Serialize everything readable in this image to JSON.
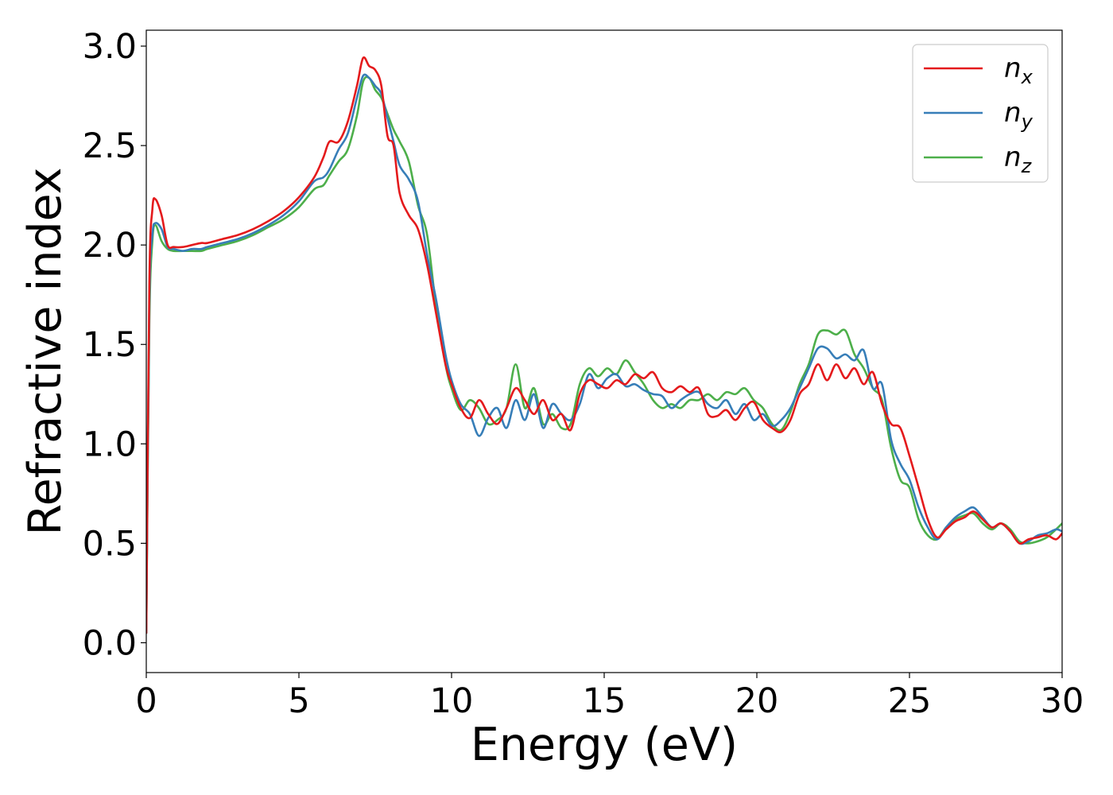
{
  "chart_data": {
    "type": "line",
    "title": "",
    "xlabel": "Energy (eV)",
    "ylabel": "Refractive index",
    "xlim": [
      0,
      30
    ],
    "ylim": [
      -0.15,
      3.08
    ],
    "xticks": [
      0,
      5,
      10,
      15,
      20,
      25,
      30
    ],
    "xtick_labels": [
      "0",
      "5",
      "10",
      "15",
      "20",
      "25",
      "30"
    ],
    "yticks": [
      0.0,
      0.5,
      1.0,
      1.5,
      2.0,
      2.5,
      3.0
    ],
    "ytick_labels": [
      "0.0",
      "0.5",
      "1.0",
      "1.5",
      "2.0",
      "2.5",
      "3.0"
    ],
    "grid": false,
    "legend_position": "top-right",
    "series": [
      {
        "name": "n",
        "subscript": "x",
        "color": "#e41a1c",
        "x": [
          0,
          0.1,
          0.2,
          0.3,
          0.5,
          0.7,
          0.9,
          1.2,
          1.5,
          1.8,
          2.0,
          2.5,
          3.0,
          3.5,
          4.0,
          4.5,
          5.0,
          5.5,
          5.8,
          6.0,
          6.3,
          6.6,
          6.9,
          7.1,
          7.3,
          7.5,
          7.7,
          7.9,
          8.1,
          8.3,
          8.6,
          8.9,
          9.2,
          9.5,
          9.8,
          10.0,
          10.3,
          10.6,
          10.9,
          11.2,
          11.5,
          11.8,
          12.1,
          12.4,
          12.7,
          13.0,
          13.3,
          13.6,
          13.9,
          14.2,
          14.5,
          14.8,
          15.1,
          15.4,
          15.7,
          16.0,
          16.3,
          16.6,
          16.9,
          17.2,
          17.5,
          17.8,
          18.1,
          18.4,
          18.7,
          19.0,
          19.3,
          19.6,
          19.9,
          20.2,
          20.5,
          20.8,
          21.1,
          21.4,
          21.7,
          22.0,
          22.3,
          22.6,
          22.9,
          23.2,
          23.5,
          23.8,
          24.1,
          24.4,
          24.7,
          25.0,
          25.3,
          25.6,
          25.9,
          26.2,
          26.5,
          26.8,
          27.1,
          27.4,
          27.7,
          28.0,
          28.3,
          28.6,
          28.9,
          29.2,
          29.5,
          29.8,
          30.0
        ],
        "y": [
          0.05,
          1.8,
          2.18,
          2.23,
          2.15,
          2.0,
          1.99,
          1.99,
          2.0,
          2.01,
          2.01,
          2.03,
          2.05,
          2.08,
          2.12,
          2.17,
          2.24,
          2.34,
          2.44,
          2.52,
          2.52,
          2.62,
          2.8,
          2.94,
          2.9,
          2.88,
          2.8,
          2.55,
          2.5,
          2.26,
          2.15,
          2.08,
          1.9,
          1.65,
          1.4,
          1.3,
          1.18,
          1.13,
          1.22,
          1.15,
          1.1,
          1.18,
          1.28,
          1.22,
          1.15,
          1.22,
          1.12,
          1.15,
          1.07,
          1.25,
          1.32,
          1.3,
          1.28,
          1.32,
          1.3,
          1.35,
          1.33,
          1.36,
          1.28,
          1.26,
          1.29,
          1.26,
          1.28,
          1.15,
          1.14,
          1.17,
          1.12,
          1.18,
          1.21,
          1.12,
          1.08,
          1.06,
          1.12,
          1.25,
          1.3,
          1.4,
          1.32,
          1.4,
          1.33,
          1.38,
          1.3,
          1.36,
          1.2,
          1.1,
          1.08,
          0.94,
          0.78,
          0.62,
          0.53,
          0.57,
          0.61,
          0.63,
          0.66,
          0.62,
          0.58,
          0.6,
          0.56,
          0.5,
          0.52,
          0.53,
          0.54,
          0.52,
          0.55
        ]
      },
      {
        "name": "n",
        "subscript": "y",
        "color": "#377eb8",
        "x": [
          0,
          0.1,
          0.2,
          0.3,
          0.5,
          0.7,
          0.9,
          1.2,
          1.5,
          1.8,
          2.0,
          2.5,
          3.0,
          3.5,
          4.0,
          4.5,
          5.0,
          5.5,
          5.8,
          6.0,
          6.3,
          6.6,
          6.9,
          7.1,
          7.3,
          7.5,
          7.7,
          7.9,
          8.1,
          8.3,
          8.6,
          8.9,
          9.2,
          9.5,
          9.8,
          10.0,
          10.3,
          10.6,
          10.9,
          11.2,
          11.5,
          11.8,
          12.1,
          12.4,
          12.7,
          13.0,
          13.3,
          13.6,
          13.9,
          14.2,
          14.5,
          14.8,
          15.1,
          15.4,
          15.7,
          16.0,
          16.3,
          16.6,
          16.9,
          17.2,
          17.5,
          17.8,
          18.1,
          18.4,
          18.7,
          19.0,
          19.3,
          19.6,
          19.9,
          20.2,
          20.5,
          20.8,
          21.1,
          21.4,
          21.7,
          22.0,
          22.3,
          22.6,
          22.9,
          23.2,
          23.5,
          23.8,
          24.1,
          24.4,
          24.7,
          25.0,
          25.3,
          25.6,
          25.9,
          26.2,
          26.5,
          26.8,
          27.1,
          27.4,
          27.7,
          28.0,
          28.3,
          28.6,
          28.9,
          29.2,
          29.5,
          29.8,
          30.0
        ],
        "y": [
          0.05,
          1.7,
          2.05,
          2.11,
          2.08,
          1.99,
          1.98,
          1.97,
          1.98,
          1.98,
          1.99,
          2.01,
          2.03,
          2.06,
          2.1,
          2.15,
          2.22,
          2.32,
          2.34,
          2.38,
          2.48,
          2.56,
          2.74,
          2.85,
          2.84,
          2.8,
          2.76,
          2.64,
          2.52,
          2.4,
          2.33,
          2.22,
          1.95,
          1.72,
          1.45,
          1.32,
          1.2,
          1.15,
          1.04,
          1.13,
          1.18,
          1.08,
          1.22,
          1.12,
          1.25,
          1.08,
          1.2,
          1.15,
          1.12,
          1.2,
          1.35,
          1.28,
          1.33,
          1.35,
          1.29,
          1.3,
          1.27,
          1.25,
          1.24,
          1.18,
          1.22,
          1.25,
          1.26,
          1.2,
          1.18,
          1.22,
          1.15,
          1.2,
          1.12,
          1.15,
          1.09,
          1.12,
          1.18,
          1.28,
          1.38,
          1.48,
          1.48,
          1.43,
          1.45,
          1.42,
          1.47,
          1.28,
          1.3,
          1.02,
          0.9,
          0.82,
          0.68,
          0.58,
          0.52,
          0.58,
          0.63,
          0.66,
          0.68,
          0.63,
          0.58,
          0.6,
          0.56,
          0.5,
          0.51,
          0.54,
          0.55,
          0.57,
          0.56
        ]
      },
      {
        "name": "n",
        "subscript": "z",
        "color": "#4daf4a",
        "x": [
          0,
          0.1,
          0.2,
          0.3,
          0.5,
          0.7,
          0.9,
          1.2,
          1.5,
          1.8,
          2.0,
          2.5,
          3.0,
          3.5,
          4.0,
          4.5,
          5.0,
          5.5,
          5.8,
          6.0,
          6.3,
          6.6,
          6.9,
          7.1,
          7.3,
          7.5,
          7.7,
          7.9,
          8.1,
          8.3,
          8.6,
          8.9,
          9.2,
          9.5,
          9.8,
          10.0,
          10.3,
          10.6,
          10.9,
          11.2,
          11.5,
          11.8,
          12.1,
          12.4,
          12.7,
          13.0,
          13.3,
          13.6,
          13.9,
          14.2,
          14.5,
          14.8,
          15.1,
          15.4,
          15.7,
          16.0,
          16.3,
          16.6,
          16.9,
          17.2,
          17.5,
          17.8,
          18.1,
          18.4,
          18.7,
          19.0,
          19.3,
          19.6,
          19.9,
          20.2,
          20.5,
          20.8,
          21.1,
          21.4,
          21.7,
          22.0,
          22.3,
          22.6,
          22.9,
          23.2,
          23.5,
          23.8,
          24.1,
          24.4,
          24.7,
          25.0,
          25.3,
          25.6,
          25.9,
          26.2,
          26.5,
          26.8,
          27.1,
          27.4,
          27.7,
          28.0,
          28.3,
          28.6,
          28.9,
          29.2,
          29.5,
          29.8,
          30.0
        ],
        "y": [
          0.05,
          1.6,
          2.02,
          2.1,
          2.02,
          1.98,
          1.97,
          1.97,
          1.97,
          1.97,
          1.98,
          2.0,
          2.02,
          2.05,
          2.09,
          2.13,
          2.19,
          2.28,
          2.3,
          2.35,
          2.42,
          2.48,
          2.65,
          2.82,
          2.84,
          2.78,
          2.74,
          2.66,
          2.58,
          2.52,
          2.42,
          2.2,
          2.05,
          1.68,
          1.4,
          1.28,
          1.17,
          1.22,
          1.18,
          1.1,
          1.12,
          1.18,
          1.4,
          1.18,
          1.28,
          1.1,
          1.15,
          1.08,
          1.1,
          1.3,
          1.38,
          1.34,
          1.38,
          1.35,
          1.42,
          1.36,
          1.3,
          1.22,
          1.18,
          1.2,
          1.18,
          1.22,
          1.22,
          1.25,
          1.22,
          1.26,
          1.25,
          1.28,
          1.22,
          1.18,
          1.1,
          1.07,
          1.16,
          1.3,
          1.4,
          1.55,
          1.57,
          1.55,
          1.57,
          1.45,
          1.38,
          1.28,
          1.22,
          0.98,
          0.82,
          0.78,
          0.62,
          0.54,
          0.52,
          0.58,
          0.62,
          0.64,
          0.65,
          0.6,
          0.57,
          0.6,
          0.57,
          0.51,
          0.5,
          0.51,
          0.53,
          0.57,
          0.6
        ]
      }
    ]
  }
}
